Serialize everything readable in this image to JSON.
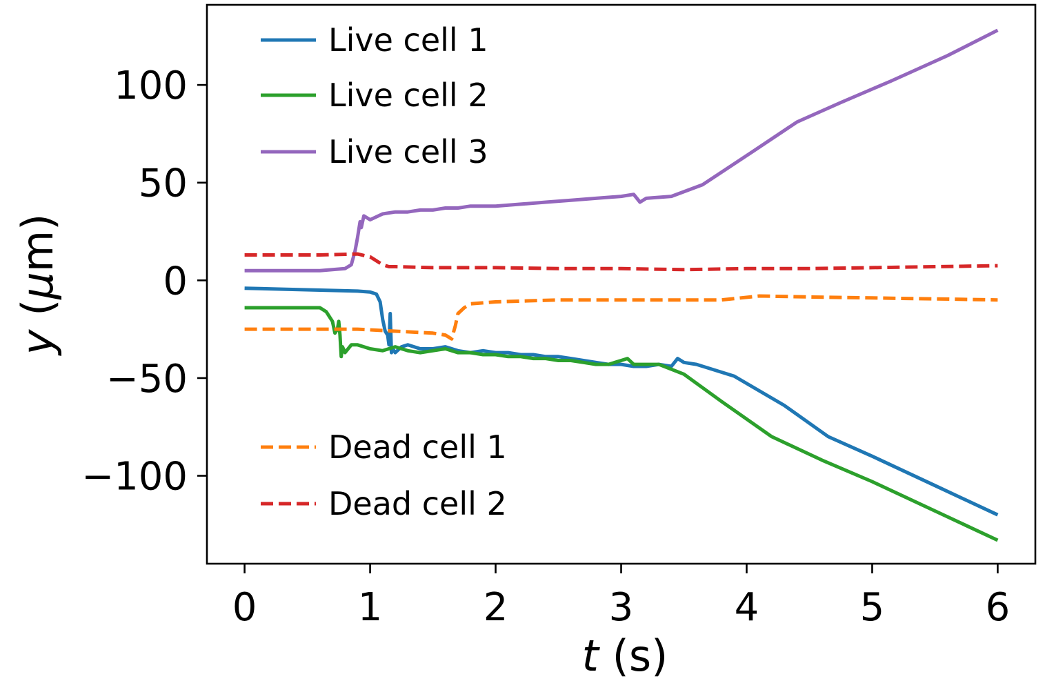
{
  "chart_data": {
    "type": "line",
    "title": "",
    "xlabel": {
      "var": "t",
      "unit": " (s)"
    },
    "ylabel": {
      "var": "y",
      "open": " (",
      "mu": "μ",
      "unit": "m)"
    },
    "xlim": [
      -0.3,
      6.3
    ],
    "ylim": [
      -145,
      141
    ],
    "xticks": [
      0,
      1,
      2,
      3,
      4,
      5,
      6
    ],
    "xtick_labels": [
      "0",
      "1",
      "2",
      "3",
      "4",
      "5",
      "6"
    ],
    "yticks": [
      100,
      50,
      0,
      -50,
      -100
    ],
    "ytick_labels": [
      "100",
      "50",
      "0",
      "−50",
      "−100"
    ],
    "grid": false,
    "legend_placement": [
      "upper-left",
      "lower-left"
    ],
    "series": [
      {
        "name": "Live cell 1",
        "color": "#1f77b4",
        "style": "solid",
        "x": [
          0,
          0.3,
          0.6,
          0.9,
          1.0,
          1.05,
          1.08,
          1.1,
          1.12,
          1.14,
          1.15,
          1.16,
          1.17,
          1.18,
          1.2,
          1.25,
          1.3,
          1.4,
          1.5,
          1.6,
          1.7,
          1.8,
          1.9,
          2.0,
          2.1,
          2.2,
          2.3,
          2.4,
          2.5,
          2.6,
          2.7,
          2.8,
          2.9,
          3.0,
          3.1,
          3.2,
          3.3,
          3.4,
          3.45,
          3.5,
          3.6,
          3.9,
          4.3,
          4.65,
          5.0,
          5.5,
          6.0
        ],
        "y": [
          -4,
          -4.5,
          -5,
          -5.5,
          -6,
          -7,
          -11,
          -20,
          -26,
          -28,
          -33,
          -17,
          -37,
          -35,
          -37,
          -34,
          -33,
          -35,
          -35,
          -34,
          -36,
          -37,
          -36,
          -37,
          -37,
          -38,
          -38,
          -39,
          -39,
          -40,
          -41,
          -42,
          -43,
          -43,
          -44,
          -44,
          -43,
          -44,
          -40,
          -42,
          -43,
          -49,
          -64,
          -80,
          -90,
          -105,
          -120
        ]
      },
      {
        "name": "Live cell 2",
        "color": "#2ca02c",
        "style": "solid",
        "x": [
          0,
          0.3,
          0.6,
          0.65,
          0.7,
          0.72,
          0.74,
          0.75,
          0.76,
          0.77,
          0.78,
          0.8,
          0.85,
          0.9,
          0.95,
          1.0,
          1.1,
          1.2,
          1.3,
          1.4,
          1.5,
          1.6,
          1.7,
          1.8,
          1.9,
          2.0,
          2.1,
          2.2,
          2.3,
          2.4,
          2.5,
          2.6,
          2.7,
          2.8,
          2.9,
          3.0,
          3.05,
          3.1,
          3.2,
          3.3,
          3.5,
          3.8,
          4.2,
          4.6,
          5.0,
          5.5,
          6.0
        ],
        "y": [
          -14,
          -14,
          -14,
          -16,
          -21,
          -27,
          -25,
          -21,
          -28,
          -39,
          -34,
          -37,
          -33,
          -33,
          -34,
          -35,
          -36,
          -34,
          -36,
          -37,
          -36,
          -35,
          -37,
          -37,
          -38,
          -38,
          -39,
          -39,
          -40,
          -40,
          -41,
          -41,
          -42,
          -43,
          -43,
          -41,
          -40,
          -43,
          -43,
          -43,
          -48,
          -62,
          -80,
          -92,
          -103,
          -118,
          -133
        ]
      },
      {
        "name": "Live cell 3",
        "color": "#9467bd",
        "style": "solid",
        "x": [
          0,
          0.3,
          0.6,
          0.8,
          0.85,
          0.88,
          0.9,
          0.92,
          0.93,
          0.95,
          1.0,
          1.1,
          1.2,
          1.3,
          1.4,
          1.5,
          1.6,
          1.7,
          1.8,
          1.9,
          2.0,
          2.2,
          2.4,
          2.6,
          2.8,
          3.0,
          3.1,
          3.15,
          3.2,
          3.4,
          3.65,
          4.05,
          4.4,
          4.75,
          5.15,
          5.6,
          6.0
        ],
        "y": [
          5,
          5,
          5,
          6,
          8,
          15,
          22,
          30,
          27,
          33,
          31,
          34,
          35,
          35,
          36,
          36,
          37,
          37,
          38,
          38,
          38,
          39,
          40,
          41,
          42,
          43,
          44,
          40,
          42,
          43,
          49,
          66,
          81,
          91,
          102,
          115,
          128
        ]
      },
      {
        "name": "Dead cell 1",
        "color": "#ff7f0e",
        "style": "dashed",
        "x": [
          0,
          0.3,
          0.6,
          0.9,
          1.2,
          1.5,
          1.6,
          1.65,
          1.68,
          1.7,
          1.75,
          1.8,
          2.0,
          2.5,
          3.0,
          3.5,
          3.8,
          4.1,
          4.5,
          5.0,
          5.5,
          6.0
        ],
        "y": [
          -25,
          -25,
          -25,
          -25,
          -26,
          -27,
          -28,
          -30,
          -23,
          -17,
          -14,
          -12,
          -11,
          -10,
          -10,
          -10,
          -10,
          -8,
          -8.5,
          -9,
          -9.5,
          -10
        ]
      },
      {
        "name": "Dead cell 2",
        "color": "#d62728",
        "style": "dashed",
        "x": [
          0,
          0.3,
          0.6,
          0.9,
          1.0,
          1.05,
          1.1,
          1.15,
          1.2,
          1.5,
          2.0,
          2.5,
          3.0,
          3.5,
          4.0,
          4.5,
          5.0,
          5.5,
          6.0
        ],
        "y": [
          13,
          13,
          13,
          13.5,
          12,
          10,
          8,
          7,
          7,
          6.5,
          6.5,
          6,
          6,
          5.5,
          6,
          6,
          6.5,
          7,
          7.5
        ]
      }
    ],
    "legend_groups": [
      [
        0,
        1,
        2
      ],
      [
        3,
        4
      ]
    ]
  }
}
